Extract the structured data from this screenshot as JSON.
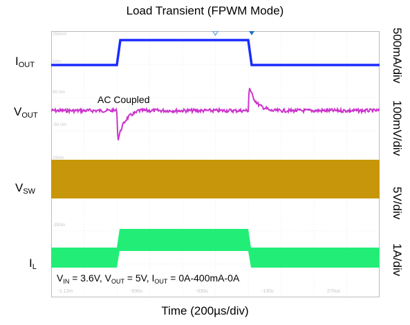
{
  "chart_data": {
    "type": "line",
    "title": "Load Transient (FPWM Mode)",
    "xlabel": "Time (200µs/div)",
    "annotation_ac": "AC Coupled",
    "conditions": {
      "v": "V",
      "in_sub": "IN",
      "eq1": " = 3.6V, ",
      "out_sub": "OUT",
      "eq2": " = 5V, ",
      "i": "I",
      "iout_sub": "OUT",
      "eq3": " = 0A-400mA-0A"
    },
    "channels": [
      {
        "label": "I",
        "sub": "OUT",
        "scale": "500mA/div",
        "color": "#1a2cff"
      },
      {
        "label": "V",
        "sub": "OUT",
        "scale": "100mV/div",
        "color": "#cc33cc"
      },
      {
        "label": "V",
        "sub": "SW",
        "scale": "5V/div",
        "color": "#c8960a"
      },
      {
        "label": "I",
        "sub": "L",
        "scale": "1A/div",
        "color": "#22ee77"
      }
    ],
    "x_tick_labels": [
      "-1.13m",
      "-930u",
      "-530u",
      "-130u",
      "270us"
    ],
    "scope_marker_labels": [
      "250mV",
      "50m",
      "50.0m",
      "-50.0m",
      "150m",
      "-250m",
      "-350m",
      "-450m"
    ],
    "time_divisions": 10,
    "load_step": {
      "rise_div": 2.0,
      "fall_div": 6.0
    }
  }
}
